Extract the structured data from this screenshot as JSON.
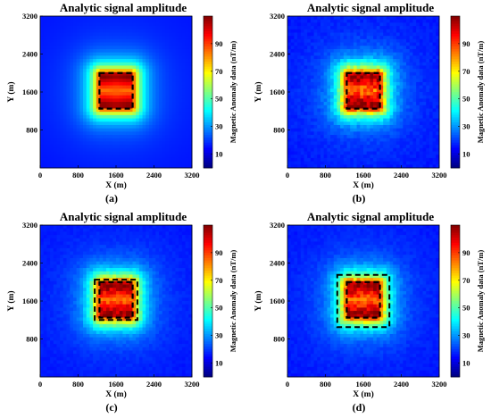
{
  "chart_data": [
    {
      "type": "heatmap",
      "panel_label": "(a)",
      "title": "Analytic signal amplitude",
      "xlabel": "X (m)",
      "ylabel": "Y (m)",
      "xlim": [
        0,
        3200
      ],
      "ylim": [
        0,
        3200
      ],
      "xticks": [
        "0",
        "800",
        "1600",
        "2400",
        "3200"
      ],
      "yticks": [
        "800",
        "1600",
        "2400",
        "3200"
      ],
      "colorbar": {
        "label": "Magnetic Anomaly data (nT/m)",
        "ticks": [
          "10",
          "30",
          "50",
          "70",
          "90"
        ],
        "range": [
          0,
          110
        ]
      },
      "source_box": {
        "x": [
          1250,
          1950
        ],
        "y": [
          1250,
          2000
        ]
      },
      "noise_level": 0.0,
      "interpreted_box": null
    },
    {
      "type": "heatmap",
      "panel_label": "(b)",
      "title": "Analytic signal amplitude",
      "xlabel": "X (m)",
      "ylabel": "Y (m)",
      "xlim": [
        0,
        3200
      ],
      "ylim": [
        0,
        3200
      ],
      "xticks": [
        "0",
        "800",
        "1600",
        "2400",
        "3200"
      ],
      "yticks": [
        "800",
        "1600",
        "2400",
        "3200"
      ],
      "colorbar": {
        "label": "Magnetic Anomaly data (nT/m)",
        "ticks": [
          "10",
          "30",
          "50",
          "70",
          "90"
        ],
        "range": [
          0,
          110
        ]
      },
      "source_box": {
        "x": [
          1250,
          1950
        ],
        "y": [
          1250,
          2000
        ]
      },
      "noise_level": 0.35,
      "interpreted_box": null
    },
    {
      "type": "heatmap",
      "panel_label": "(c)",
      "title": "Analytic signal amplitude",
      "xlabel": "X (m)",
      "ylabel": "Y (m)",
      "xlim": [
        0,
        3200
      ],
      "ylim": [
        0,
        3200
      ],
      "xticks": [
        "0",
        "800",
        "1600",
        "2400",
        "3200"
      ],
      "yticks": [
        "800",
        "1600",
        "2400",
        "3200"
      ],
      "colorbar": {
        "label": "Magnetic Anomaly data (nT/m)",
        "ticks": [
          "10",
          "30",
          "50",
          "70",
          "90"
        ],
        "range": [
          0,
          110
        ]
      },
      "source_box": {
        "x": [
          1250,
          1950
        ],
        "y": [
          1250,
          2000
        ]
      },
      "noise_level": 0.25,
      "interpreted_box": {
        "x": [
          1150,
          2050
        ],
        "y": [
          1200,
          2050
        ]
      }
    },
    {
      "type": "heatmap",
      "panel_label": "(d)",
      "title": "Analytic signal amplitude",
      "xlabel": "X (m)",
      "ylabel": "Y (m)",
      "xlim": [
        0,
        3200
      ],
      "ylim": [
        0,
        3200
      ],
      "xticks": [
        "0",
        "800",
        "1600",
        "2400",
        "3200"
      ],
      "yticks": [
        "800",
        "1600",
        "2400",
        "3200"
      ],
      "colorbar": {
        "label": "Magnetic Anomaly data (nT/m)",
        "ticks": [
          "10",
          "30",
          "50",
          "70",
          "90"
        ],
        "range": [
          0,
          110
        ]
      },
      "source_box": {
        "x": [
          1250,
          1950
        ],
        "y": [
          1250,
          2000
        ]
      },
      "noise_level": 0.3,
      "interpreted_box": {
        "x": [
          1050,
          2150
        ],
        "y": [
          1050,
          2150
        ]
      }
    }
  ]
}
